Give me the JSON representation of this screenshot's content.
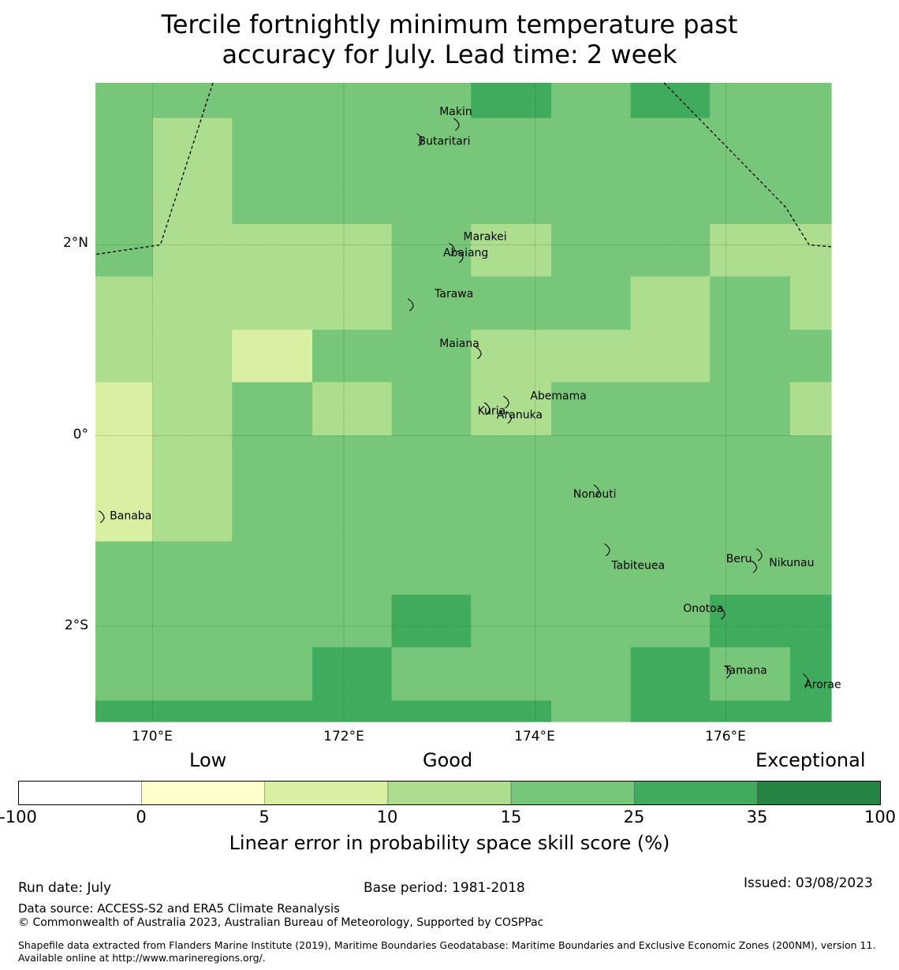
{
  "title_lines": [
    "Tercile fortnightly minimum temperature past",
    "accuracy for July. Lead time: 2 week"
  ],
  "map": {
    "lon_range": [
      169.4,
      177.1
    ],
    "lat_range": [
      -3.0,
      3.7
    ],
    "lat_ticks": [
      {
        "value": 2,
        "label": "2°N"
      },
      {
        "value": 0,
        "label": "0°"
      },
      {
        "value": -2,
        "label": "2°S"
      }
    ],
    "lon_ticks": [
      {
        "value": 170,
        "label": "170°E"
      },
      {
        "value": 172,
        "label": "172°E"
      },
      {
        "value": 174,
        "label": "174°E"
      },
      {
        "value": 176,
        "label": "176°E"
      }
    ],
    "grid_lon_edges": [
      169.4,
      170.0,
      170.83,
      171.67,
      172.5,
      173.33,
      174.17,
      175.0,
      175.83,
      176.67,
      177.1
    ],
    "grid_lat_edges": [
      3.7,
      3.33,
      2.22,
      1.67,
      1.11,
      0.56,
      0.0,
      -1.11,
      -1.67,
      -2.22,
      -2.78,
      -3.0
    ],
    "grid_class": [
      [
        4,
        4,
        4,
        4,
        4,
        5,
        4,
        5,
        4,
        4
      ],
      [
        4,
        3,
        4,
        4,
        4,
        4,
        4,
        4,
        4,
        4
      ],
      [
        4,
        3,
        3,
        3,
        4,
        3,
        4,
        4,
        3,
        3
      ],
      [
        3,
        3,
        3,
        3,
        4,
        4,
        4,
        3,
        4,
        3
      ],
      [
        3,
        3,
        2,
        4,
        4,
        3,
        3,
        3,
        4,
        4
      ],
      [
        2,
        3,
        4,
        3,
        4,
        3,
        4,
        4,
        4,
        3
      ],
      [
        2,
        3,
        4,
        4,
        4,
        4,
        4,
        4,
        4,
        4
      ],
      [
        4,
        4,
        4,
        4,
        4,
        4,
        4,
        4,
        4,
        4
      ],
      [
        4,
        4,
        4,
        4,
        5,
        4,
        4,
        4,
        5,
        5
      ],
      [
        4,
        4,
        4,
        5,
        4,
        4,
        4,
        5,
        4,
        5
      ],
      [
        5,
        5,
        5,
        5,
        5,
        5,
        4,
        5,
        5,
        5
      ]
    ],
    "boundary_lines": [
      [
        [
          170.63,
          3.7
        ],
        [
          170.08,
          2.0
        ],
        [
          169.4,
          1.9
        ]
      ],
      [
        [
          175.35,
          3.7
        ],
        [
          176.62,
          2.4
        ],
        [
          176.87,
          2.0
        ],
        [
          177.1,
          1.98
        ]
      ]
    ],
    "islands": [
      {
        "name": "Makin",
        "lon": 173.0,
        "lat": 3.36
      },
      {
        "name": "Butaritari",
        "lon": 172.78,
        "lat": 3.05
      },
      {
        "name": "Marakei",
        "lon": 173.25,
        "lat": 2.05
      },
      {
        "name": "Abaiang",
        "lon": 173.04,
        "lat": 1.88
      },
      {
        "name": "Tarawa",
        "lon": 172.95,
        "lat": 1.45
      },
      {
        "name": "Maiana",
        "lon": 173.0,
        "lat": 0.93
      },
      {
        "name": "Abemama",
        "lon": 173.95,
        "lat": 0.38
      },
      {
        "name": "Kuria",
        "lon": 173.4,
        "lat": 0.22
      },
      {
        "name": "Aranuka",
        "lon": 173.6,
        "lat": 0.18
      },
      {
        "name": "Nonouti",
        "lon": 174.4,
        "lat": -0.65
      },
      {
        "name": "Banaba",
        "lon": 169.55,
        "lat": -0.88
      },
      {
        "name": "Tabiteuea",
        "lon": 174.8,
        "lat": -1.4
      },
      {
        "name": "Beru",
        "lon": 176.0,
        "lat": -1.33
      },
      {
        "name": "Nikunau",
        "lon": 176.45,
        "lat": -1.37
      },
      {
        "name": "Onotoa",
        "lon": 175.55,
        "lat": -1.85
      },
      {
        "name": "Tamana",
        "lon": 175.98,
        "lat": -2.5
      },
      {
        "name": "Arorae",
        "lon": 176.82,
        "lat": -2.65
      }
    ]
  },
  "colorbar": {
    "category_labels": [
      "Low",
      "Good",
      "Exceptional"
    ],
    "ticks": [
      "-100",
      "0",
      "5",
      "10",
      "15",
      "25",
      "35",
      "100"
    ],
    "colors": [
      "#ffffff",
      "#ffffcc",
      "#d9f0a3",
      "#addd8e",
      "#78c679",
      "#41ab5d",
      "#238443"
    ],
    "title": "Linear error in probability space skill score (%)"
  },
  "footer": {
    "run_date": "Run date: July",
    "base_period": "Base period: 1981-2018",
    "issued": "Issued: 03/08/2023",
    "data_source": "Data source: ACCESS-S2 and ERA5 Climate Reanalysis",
    "copyright": "© Commonwealth of Australia 2023, Australian Bureau of Meteorology, Supported by COSPPac",
    "shapefile": "Shapefile data extracted from Flanders Marine Institute (2019), Maritime Boundaries Geodatabase: Maritime Boundaries and Exclusive Economic Zones (200NM), version 11. Available online at http://www.marineregions.org/."
  }
}
